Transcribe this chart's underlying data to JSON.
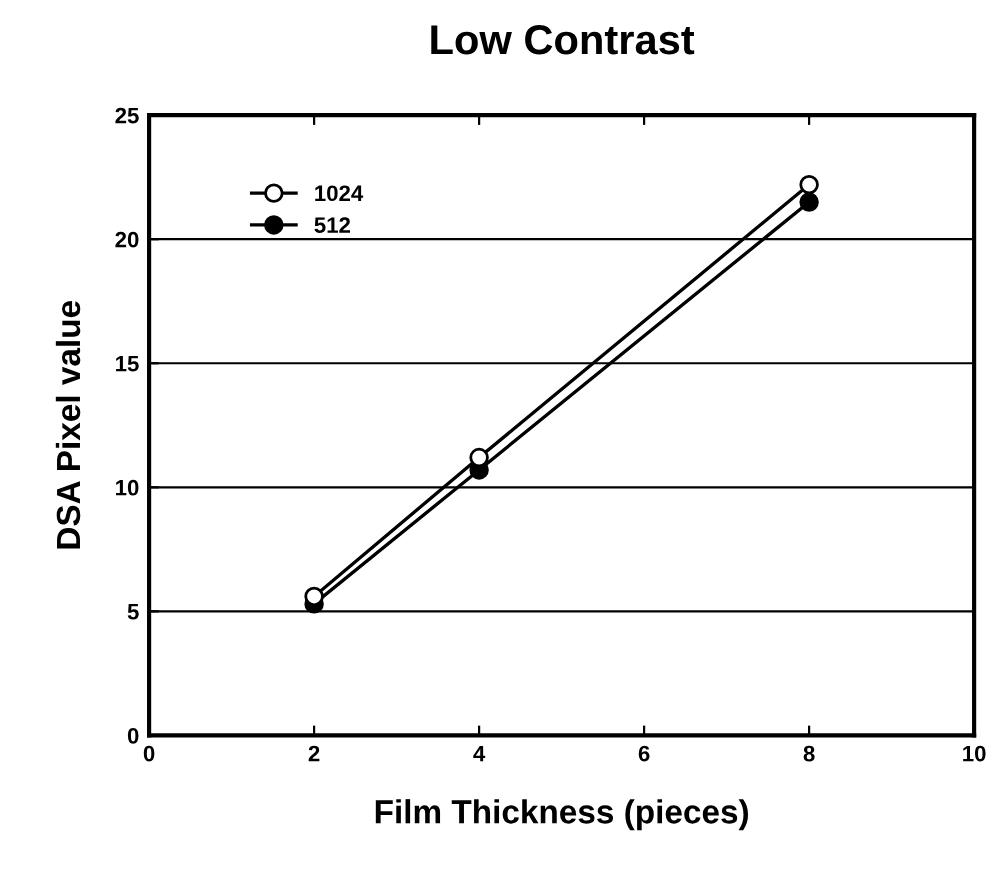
{
  "chart_data": {
    "type": "line",
    "title": "Low Contrast",
    "xlabel": "Film Thickness (pieces)",
    "ylabel": "DSA Pixel value",
    "x": [
      2,
      4,
      8
    ],
    "series": [
      {
        "name": "1024",
        "color": "#000000",
        "values": [
          5.6,
          11.2,
          22.2
        ]
      },
      {
        "name": "512",
        "color": "#000000",
        "values": [
          5.3,
          10.7,
          21.5
        ]
      }
    ],
    "xlim": [
      0,
      10
    ],
    "xticks": [
      0,
      2,
      4,
      6,
      8,
      10
    ],
    "ylim": [
      0,
      25
    ],
    "yticks": [
      0,
      5,
      10,
      15,
      20,
      25
    ],
    "grid": "y",
    "legend": "top left",
    "marker": "circle",
    "line_style": "solid"
  }
}
